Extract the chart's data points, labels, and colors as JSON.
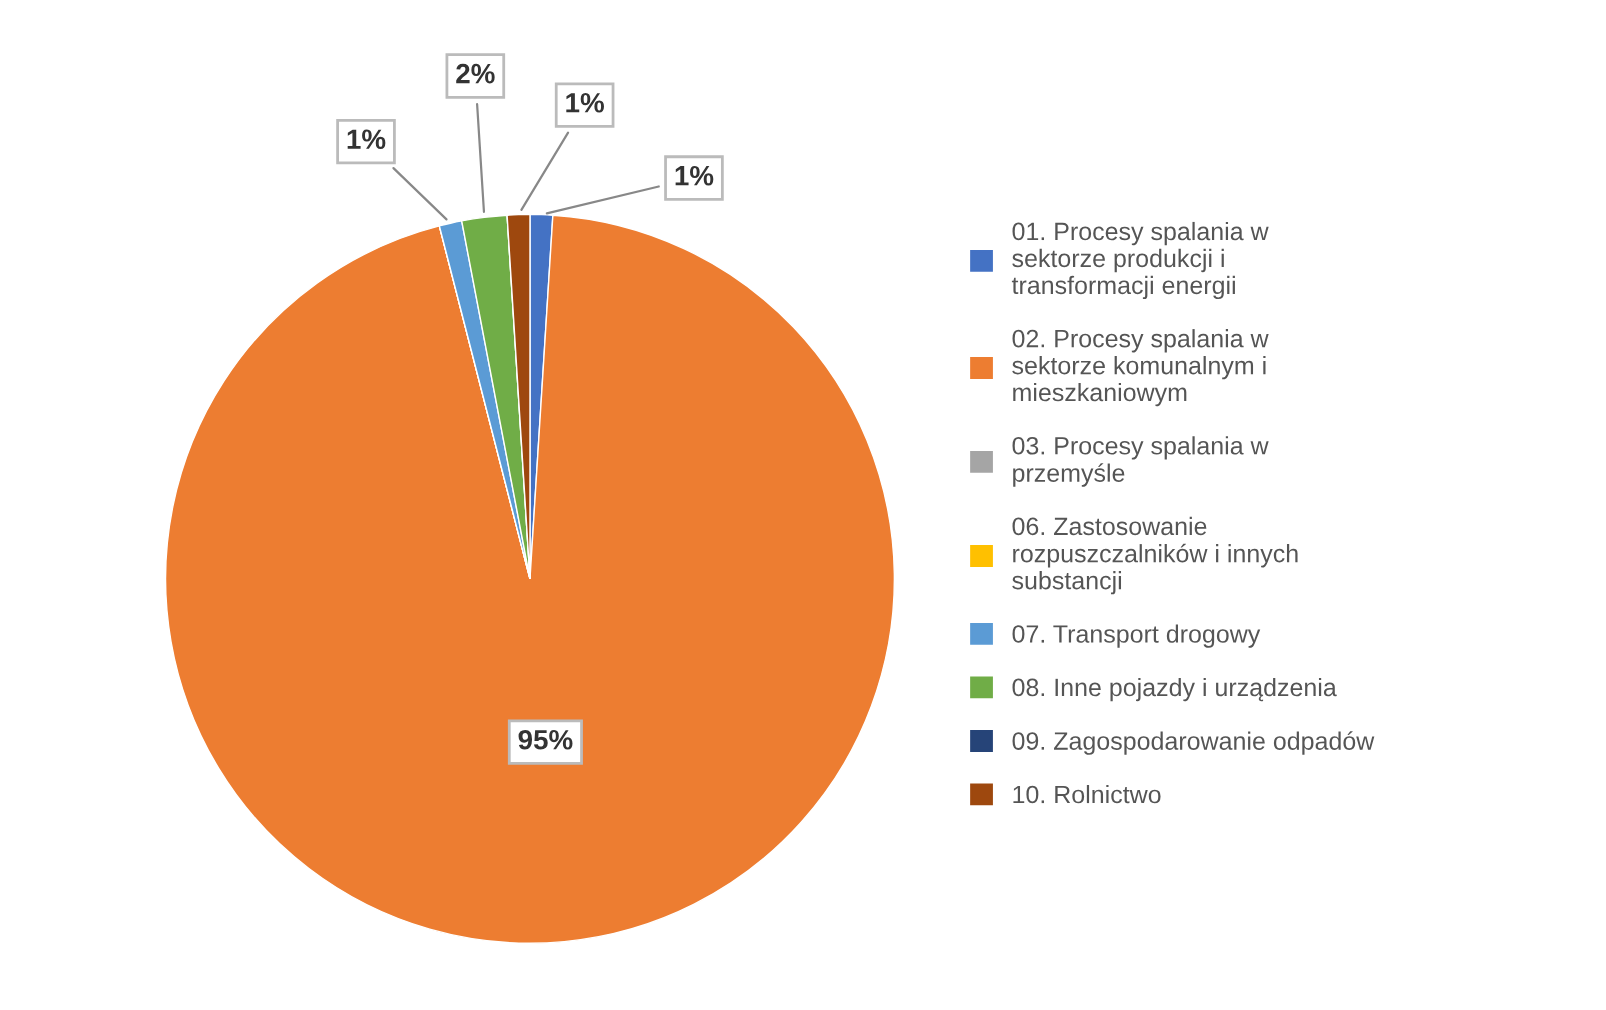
{
  "chart_data": {
    "type": "pie",
    "categories": [
      "01. Procesy spalania w sektorze produkcji i transformacji energii",
      "02. Procesy spalania w sektorze komunalnym i mieszkaniowym",
      "03. Procesy spalania w przemyśle",
      "06. Zastosowanie rozpuszczalników i innych substancji",
      "07. Transport drogowy",
      "08. Inne pojazdy i urządzenia",
      "09. Zagospodarowanie odpadów",
      "10. Rolnictwo"
    ],
    "values": [
      1,
      95,
      0,
      0,
      1,
      2,
      0,
      1
    ],
    "colors": [
      "#4472c4",
      "#ed7d31",
      "#a5a5a5",
      "#ffc000",
      "#5b9bd5",
      "#70ad47",
      "#264478",
      "#9e480e"
    ],
    "value_labels": [
      "1%",
      "95%",
      null,
      null,
      "1%",
      "2%",
      null,
      "1%"
    ],
    "legend": "right"
  }
}
